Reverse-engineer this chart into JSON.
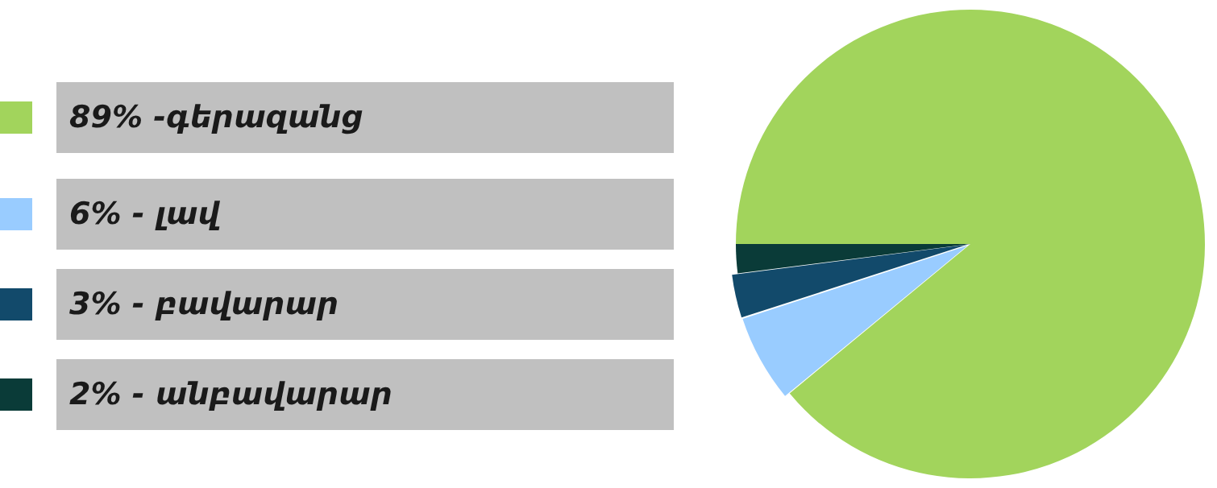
{
  "chart_data": {
    "type": "pie",
    "categories": [
      "89% -գերազանց",
      "6% - լավ",
      "3% - բավարար",
      "2% - անբավարար"
    ],
    "values": [
      89,
      6,
      3,
      2
    ],
    "colors": [
      "#a2d45c",
      "#99ccff",
      "#124a6b",
      "#0a3b38"
    ],
    "legend": "left"
  }
}
